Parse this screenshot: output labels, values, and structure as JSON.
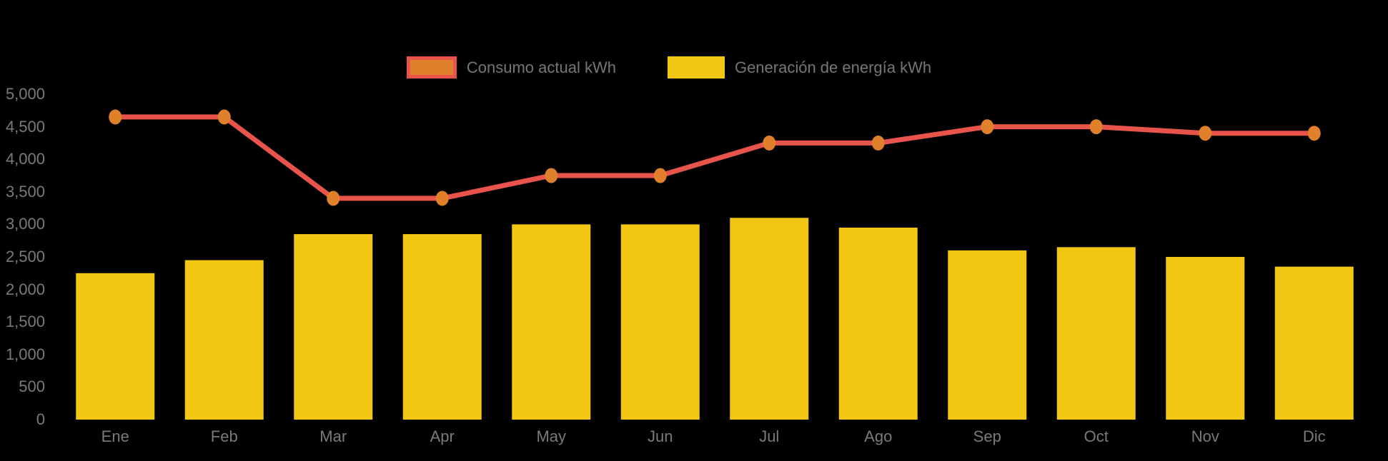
{
  "app": {
    "background_color": "#000000",
    "text_color": "#7a7a7a"
  },
  "legend": [
    {
      "label": "Consumo actual kWh",
      "swatch_fill": "#E0802B",
      "swatch_border": "#E8544B",
      "series_type": "line"
    },
    {
      "label": "Generación de energía kWh",
      "swatch_fill": "#F1C713",
      "swatch_border": null,
      "series_type": "bar"
    }
  ],
  "chart_data": {
    "type": "combo-bar-line",
    "title": "",
    "xlabel": "",
    "ylabel": "",
    "categories": [
      "Ene",
      "Feb",
      "Mar",
      "Apr",
      "May",
      "Jun",
      "Jul",
      "Ago",
      "Sep",
      "Oct",
      "Nov",
      "Dic"
    ],
    "series": [
      {
        "name": "Consumo actual kWh",
        "type": "line",
        "color": "#E8544B",
        "marker_color": "#E0802B",
        "values": [
          4650,
          4650,
          3400,
          3400,
          3750,
          3750,
          4250,
          4250,
          4500,
          4500,
          4400,
          4400
        ]
      },
      {
        "name": "Generación de energía kWh",
        "type": "bar",
        "color": "#F1C713",
        "values": [
          2250,
          2450,
          2850,
          2850,
          3000,
          3000,
          3100,
          2950,
          2600,
          2650,
          2500,
          2350
        ]
      }
    ],
    "y_axis": {
      "min": 0,
      "max": 5000,
      "tick_step": 500,
      "tick_labels": [
        "0",
        "500",
        "1,000",
        "1,500",
        "2,000",
        "2,500",
        "3,000",
        "3,500",
        "4,000",
        "4,500",
        "5,000"
      ]
    },
    "grid": false,
    "legend_position": "top-center"
  }
}
